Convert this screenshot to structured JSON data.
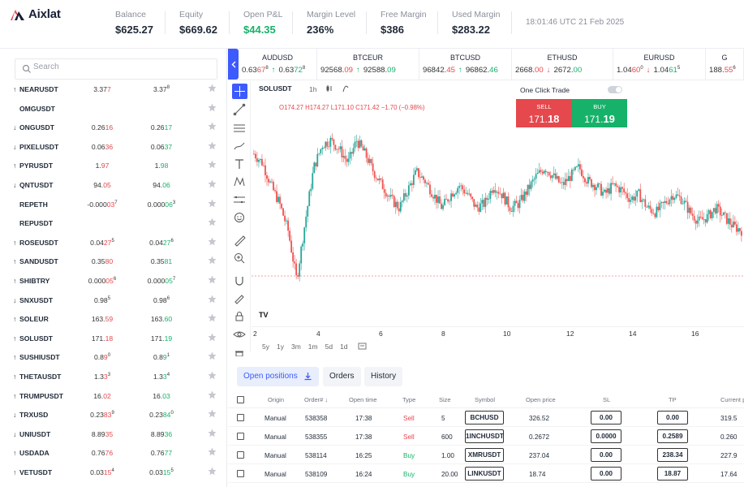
{
  "brand": {
    "name": "Aixlat"
  },
  "stats": [
    {
      "label": "Balance",
      "value": "$625.27"
    },
    {
      "label": "Equity",
      "value": "$669.62"
    },
    {
      "label": "Open P&L",
      "value": "$44.35"
    },
    {
      "label": "Margin Level",
      "value": "236%"
    },
    {
      "label": "Free Margin",
      "value": "$386"
    },
    {
      "label": "Used Margin",
      "value": "$283.22"
    }
  ],
  "clock": "18:01:46 UTC 21 Feb 2025",
  "search": {
    "placeholder": "Search"
  },
  "watchlist": [
    {
      "symbol": "NEARUSDT",
      "dir": "up",
      "bid_main": "3.37",
      "bid_hi": "7",
      "bid_sup": "",
      "bid_color": "red",
      "ask_main": "3.37",
      "ask_hi": "",
      "ask_sup": "8",
      "ask_color": "green"
    },
    {
      "symbol": "OMGUSDT",
      "dir": "",
      "bid_main": "",
      "bid_hi": "",
      "bid_sup": "",
      "bid_color": "red",
      "ask_main": "",
      "ask_hi": "",
      "ask_sup": "",
      "ask_color": "green"
    },
    {
      "symbol": "ONGUSDT",
      "dir": "down",
      "bid_main": "0.26",
      "bid_hi": "16",
      "bid_sup": "",
      "bid_color": "red",
      "ask_main": "0.26",
      "ask_hi": "17",
      "ask_sup": "",
      "ask_color": "green"
    },
    {
      "symbol": "PIXELUSDT",
      "dir": "down",
      "bid_main": "0.06",
      "bid_hi": "36",
      "bid_sup": "",
      "bid_color": "red",
      "ask_main": "0.06",
      "ask_hi": "37",
      "ask_sup": "",
      "ask_color": "green"
    },
    {
      "symbol": "PYRUSDT",
      "dir": "up",
      "bid_main": "1.",
      "bid_hi": "97",
      "bid_sup": "",
      "bid_color": "red",
      "ask_main": "1.",
      "ask_hi": "98",
      "ask_sup": "",
      "ask_color": "green"
    },
    {
      "symbol": "QNTUSDT",
      "dir": "down",
      "bid_main": "94.",
      "bid_hi": "05",
      "bid_sup": "",
      "bid_color": "red",
      "ask_main": "94.",
      "ask_hi": "06",
      "ask_sup": "",
      "ask_color": "green"
    },
    {
      "symbol": "REPETH",
      "dir": "",
      "bid_main": "-0.000",
      "bid_hi": "03",
      "bid_sup": "7",
      "bid_color": "red",
      "ask_main": "0.000",
      "ask_hi": "06",
      "ask_sup": "3",
      "ask_color": "green"
    },
    {
      "symbol": "REPUSDT",
      "dir": "",
      "bid_main": "",
      "bid_hi": "",
      "bid_sup": "",
      "bid_color": "red",
      "ask_main": "",
      "ask_hi": "",
      "ask_sup": "",
      "ask_color": "green"
    },
    {
      "symbol": "ROSEUSDT",
      "dir": "up",
      "bid_main": "0.04",
      "bid_hi": "27",
      "bid_sup": "5",
      "bid_color": "red",
      "ask_main": "0.04",
      "ask_hi": "27",
      "ask_sup": "6",
      "ask_color": "green"
    },
    {
      "symbol": "SANDUSDT",
      "dir": "up",
      "bid_main": "0.35",
      "bid_hi": "80",
      "bid_sup": "",
      "bid_color": "red",
      "ask_main": "0.35",
      "ask_hi": "81",
      "ask_sup": "",
      "ask_color": "green"
    },
    {
      "symbol": "SHIBTRY",
      "dir": "up",
      "bid_main": "0.000",
      "bid_hi": "05",
      "bid_sup": "6",
      "bid_color": "red",
      "ask_main": "0.000",
      "ask_hi": "05",
      "ask_sup": "7",
      "ask_color": "green"
    },
    {
      "symbol": "SNXUSDT",
      "dir": "down",
      "bid_main": "0.98",
      "bid_hi": "",
      "bid_sup": "5",
      "bid_color": "red",
      "ask_main": "0.98",
      "ask_hi": "",
      "ask_sup": "6",
      "ask_color": "green"
    },
    {
      "symbol": "SOLEUR",
      "dir": "up",
      "bid_main": "163.",
      "bid_hi": "59",
      "bid_sup": "",
      "bid_color": "red",
      "ask_main": "163.",
      "ask_hi": "60",
      "ask_sup": "",
      "ask_color": "green"
    },
    {
      "symbol": "SOLUSDT",
      "dir": "up",
      "bid_main": "171.",
      "bid_hi": "18",
      "bid_sup": "",
      "bid_color": "red",
      "ask_main": "171.",
      "ask_hi": "19",
      "ask_sup": "",
      "ask_color": "green"
    },
    {
      "symbol": "SUSHIUSDT",
      "dir": "up",
      "bid_main": "0.8",
      "bid_hi": "9",
      "bid_sup": "0",
      "bid_color": "red",
      "ask_main": "0.8",
      "ask_hi": "9",
      "ask_sup": "1",
      "ask_color": "green"
    },
    {
      "symbol": "THETAUSDT",
      "dir": "up",
      "bid_main": "1.3",
      "bid_hi": "3",
      "bid_sup": "3",
      "bid_color": "red",
      "ask_main": "1.3",
      "ask_hi": "3",
      "ask_sup": "4",
      "ask_color": "green"
    },
    {
      "symbol": "TRUMPUSDT",
      "dir": "up",
      "bid_main": "16.",
      "bid_hi": "02",
      "bid_sup": "",
      "bid_color": "red",
      "ask_main": "16.",
      "ask_hi": "03",
      "ask_sup": "",
      "ask_color": "green"
    },
    {
      "symbol": "TRXUSD",
      "dir": "down",
      "bid_main": "0.23",
      "bid_hi": "83",
      "bid_sup": "9",
      "bid_color": "red",
      "ask_main": "0.23",
      "ask_hi": "84",
      "ask_sup": "0",
      "ask_color": "green"
    },
    {
      "symbol": "UNIUSDT",
      "dir": "down",
      "bid_main": "8.89",
      "bid_hi": "35",
      "bid_sup": "",
      "bid_color": "red",
      "ask_main": "8.89",
      "ask_hi": "36",
      "ask_sup": "",
      "ask_color": "green"
    },
    {
      "symbol": "USDADA",
      "dir": "up",
      "bid_main": "0.76",
      "bid_hi": "76",
      "bid_sup": "",
      "bid_color": "red",
      "ask_main": "0.76",
      "ask_hi": "77",
      "ask_sup": "",
      "ask_color": "green"
    },
    {
      "symbol": "VETUSDT",
      "dir": "up",
      "bid_main": "0.03",
      "bid_hi": "15",
      "bid_sup": "4",
      "bid_color": "red",
      "ask_main": "0.03",
      "ask_hi": "15",
      "ask_sup": "5",
      "ask_color": "green"
    }
  ],
  "tickers": [
    {
      "name": "AUDUSD",
      "bid_main": "0.63",
      "bid_hi": "67",
      "bid_sup": "8",
      "arrow": "up",
      "ask_main": "0.63",
      "ask_hi": "72",
      "ask_sup": "8"
    },
    {
      "name": "BTCEUR",
      "bid_main": "92568.",
      "bid_hi": "09",
      "bid_sup": "",
      "arrow": "up",
      "ask_main": "92588.",
      "ask_hi": "09",
      "ask_sup": ""
    },
    {
      "name": "BTCUSD",
      "bid_main": "96842.",
      "bid_hi": "45",
      "bid_sup": "",
      "arrow": "up",
      "ask_main": "96862.",
      "ask_hi": "46",
      "ask_sup": ""
    },
    {
      "name": "ETHUSD",
      "bid_main": "2668.",
      "bid_hi": "00",
      "bid_sup": "",
      "arrow": "down",
      "ask_main": "2672.",
      "ask_hi": "00",
      "ask_sup": ""
    },
    {
      "name": "EURUSD",
      "bid_main": "1.04",
      "bid_hi": "60",
      "bid_sup": "0",
      "arrow": "down",
      "ask_main": "1.04",
      "ask_hi": "61",
      "ask_sup": "5"
    },
    {
      "name": "G",
      "bid_main": "188.",
      "bid_hi": "55",
      "bid_sup": "6",
      "arrow": "",
      "ask_main": "",
      "ask_hi": "",
      "ask_sup": ""
    }
  ],
  "chart_header": {
    "symbol": "SOLUSDT",
    "timeframe": "1h",
    "ohlc": "O174.27 H174.27 L171.10 C171.42 −1.70 (−0.98%)",
    "one_click_label": "One Click Trade",
    "sell_label": "SELL",
    "sell_price_main": "171.",
    "sell_price_big": "18",
    "buy_label": "BUY",
    "buy_price_main": "171.",
    "buy_price_big": "19",
    "logo": "TV",
    "ranges": [
      "5y",
      "1y",
      "3m",
      "1m",
      "5d",
      "1d"
    ]
  },
  "chart_data": {
    "type": "candlestick",
    "x_ticks": [
      "2",
      "4",
      "6",
      "8",
      "10",
      "12",
      "14",
      "16"
    ],
    "path": [
      175,
      173,
      168,
      164,
      158,
      147,
      160,
      172,
      177,
      178,
      176,
      173,
      178,
      175,
      171,
      168,
      165,
      163,
      167,
      171,
      169,
      166,
      163,
      166,
      168,
      166,
      163,
      164,
      168,
      166,
      163,
      164,
      167,
      170,
      172,
      170,
      168,
      170,
      172,
      169,
      168,
      166,
      168,
      167,
      165,
      166,
      163,
      162,
      164,
      166,
      165,
      162,
      160,
      161,
      163,
      161,
      159,
      158
    ]
  },
  "tabs": {
    "open_positions": "Open positions",
    "orders": "Orders",
    "history": "History"
  },
  "table": {
    "headers": [
      "Origin",
      "Order# ↓",
      "Open time",
      "Type",
      "Size",
      "Symbol",
      "Open price",
      "SL",
      "TP",
      "Current p"
    ],
    "rows": [
      {
        "origin": "Manual",
        "order": "538358",
        "time": "17:38",
        "type": "Sell",
        "size": "5",
        "symbol": "BCHUSD",
        "open": "326.52",
        "sl": "0.00",
        "tp": "0.00",
        "current": "319.5"
      },
      {
        "origin": "Manual",
        "order": "538355",
        "time": "17:38",
        "type": "Sell",
        "size": "600",
        "symbol": "1INCHUSDT",
        "open": "0.2672",
        "sl": "0.0000",
        "tp": "0.2589",
        "current": "0.260"
      },
      {
        "origin": "Manual",
        "order": "538114",
        "time": "16:25",
        "type": "Buy",
        "size": "1.00",
        "symbol": "XMRUSDT",
        "open": "237.04",
        "sl": "0.00",
        "tp": "238.34",
        "current": "227.9"
      },
      {
        "origin": "Manual",
        "order": "538109",
        "time": "16:24",
        "type": "Buy",
        "size": "20.00",
        "symbol": "LINKUSDT",
        "open": "18.74",
        "sl": "0.00",
        "tp": "18.87",
        "current": "17.64"
      }
    ]
  },
  "colors": {
    "accent": "#3d5afe",
    "up": "#17b26a",
    "down": "#e5484d"
  }
}
